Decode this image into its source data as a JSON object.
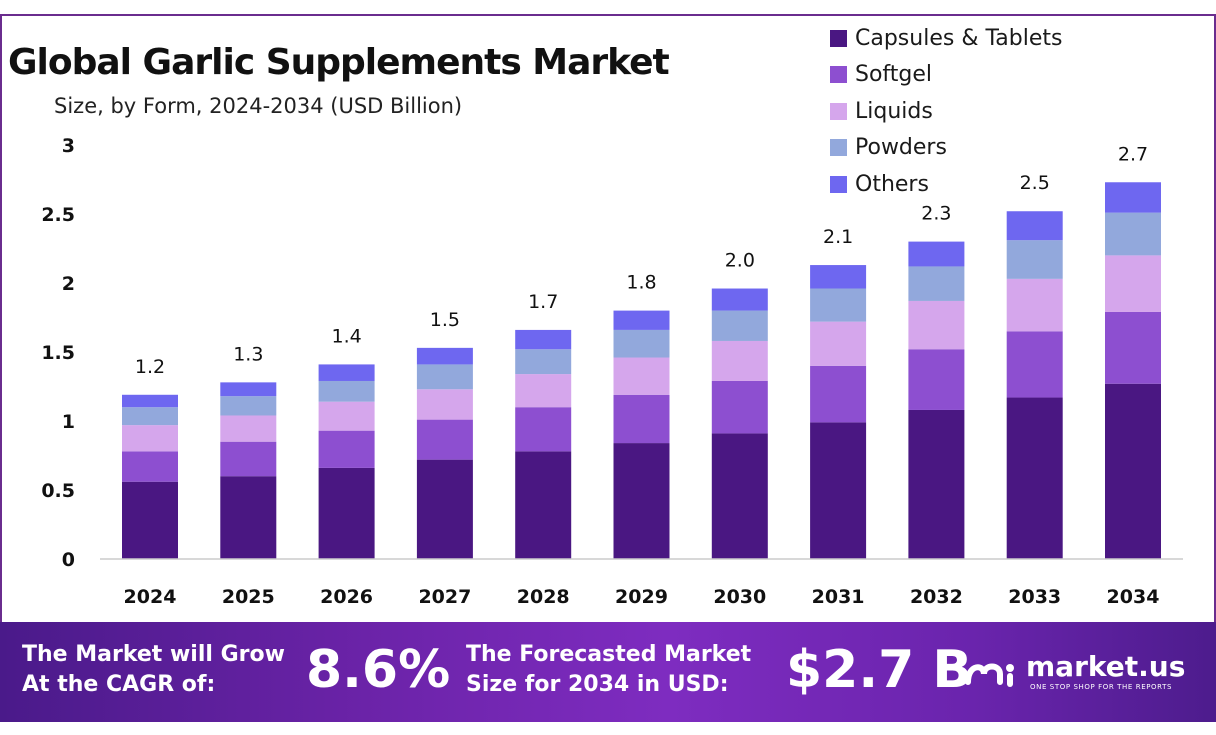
{
  "chart_data": {
    "type": "bar",
    "stacked": true,
    "title": "Global Garlic Supplements Market",
    "subtitle": "Size, by Form, 2024-2034 (USD Billion)",
    "categories": [
      "2024",
      "2025",
      "2026",
      "2027",
      "2028",
      "2029",
      "2030",
      "2031",
      "2032",
      "2033",
      "2034"
    ],
    "totals_labels": [
      "1.2",
      "1.3",
      "1.4",
      "1.5",
      "1.7",
      "1.8",
      "2.0",
      "2.1",
      "2.3",
      "2.5",
      "2.7"
    ],
    "series": [
      {
        "name": "Capsules & Tablets",
        "color": "#4a1782",
        "values": [
          0.56,
          0.6,
          0.66,
          0.72,
          0.78,
          0.84,
          0.91,
          0.99,
          1.08,
          1.17,
          1.27
        ]
      },
      {
        "name": "Softgel",
        "color": "#8d4fd0",
        "values": [
          0.22,
          0.25,
          0.27,
          0.29,
          0.32,
          0.35,
          0.38,
          0.41,
          0.44,
          0.48,
          0.52
        ]
      },
      {
        "name": "Liquids",
        "color": "#d5a6ec",
        "values": [
          0.19,
          0.19,
          0.21,
          0.22,
          0.24,
          0.27,
          0.29,
          0.32,
          0.35,
          0.38,
          0.41
        ]
      },
      {
        "name": "Powders",
        "color": "#92a8dc",
        "values": [
          0.13,
          0.14,
          0.15,
          0.18,
          0.18,
          0.2,
          0.22,
          0.24,
          0.25,
          0.28,
          0.31
        ]
      },
      {
        "name": "Others",
        "color": "#6e67f0",
        "values": [
          0.09,
          0.1,
          0.12,
          0.12,
          0.14,
          0.14,
          0.16,
          0.17,
          0.18,
          0.21,
          0.22
        ]
      }
    ],
    "ylim": [
      0,
      3
    ],
    "yticks": [
      "0",
      "0.5",
      "1",
      "1.5",
      "2",
      "2.5",
      "3"
    ],
    "grid": false,
    "legend_position": "top-right"
  },
  "footer": {
    "cagr_label_line1": "The Market will Grow",
    "cagr_label_line2": "At the CAGR of:",
    "cagr_value": "8.6%",
    "forecast_label_line1": "The Forecasted Market",
    "forecast_label_line2": "Size for 2034 in USD:",
    "forecast_value": "$2.7 B",
    "brand_name": "market.us",
    "brand_tagline": "ONE STOP SHOP FOR THE REPORTS",
    "brand_icon": "market-us-logo-icon"
  },
  "colors": {
    "frame_border": "#6a2c8e",
    "footer_gradient": [
      "#4a1a8a",
      "#7e2cc0",
      "#4d1c8d"
    ]
  }
}
